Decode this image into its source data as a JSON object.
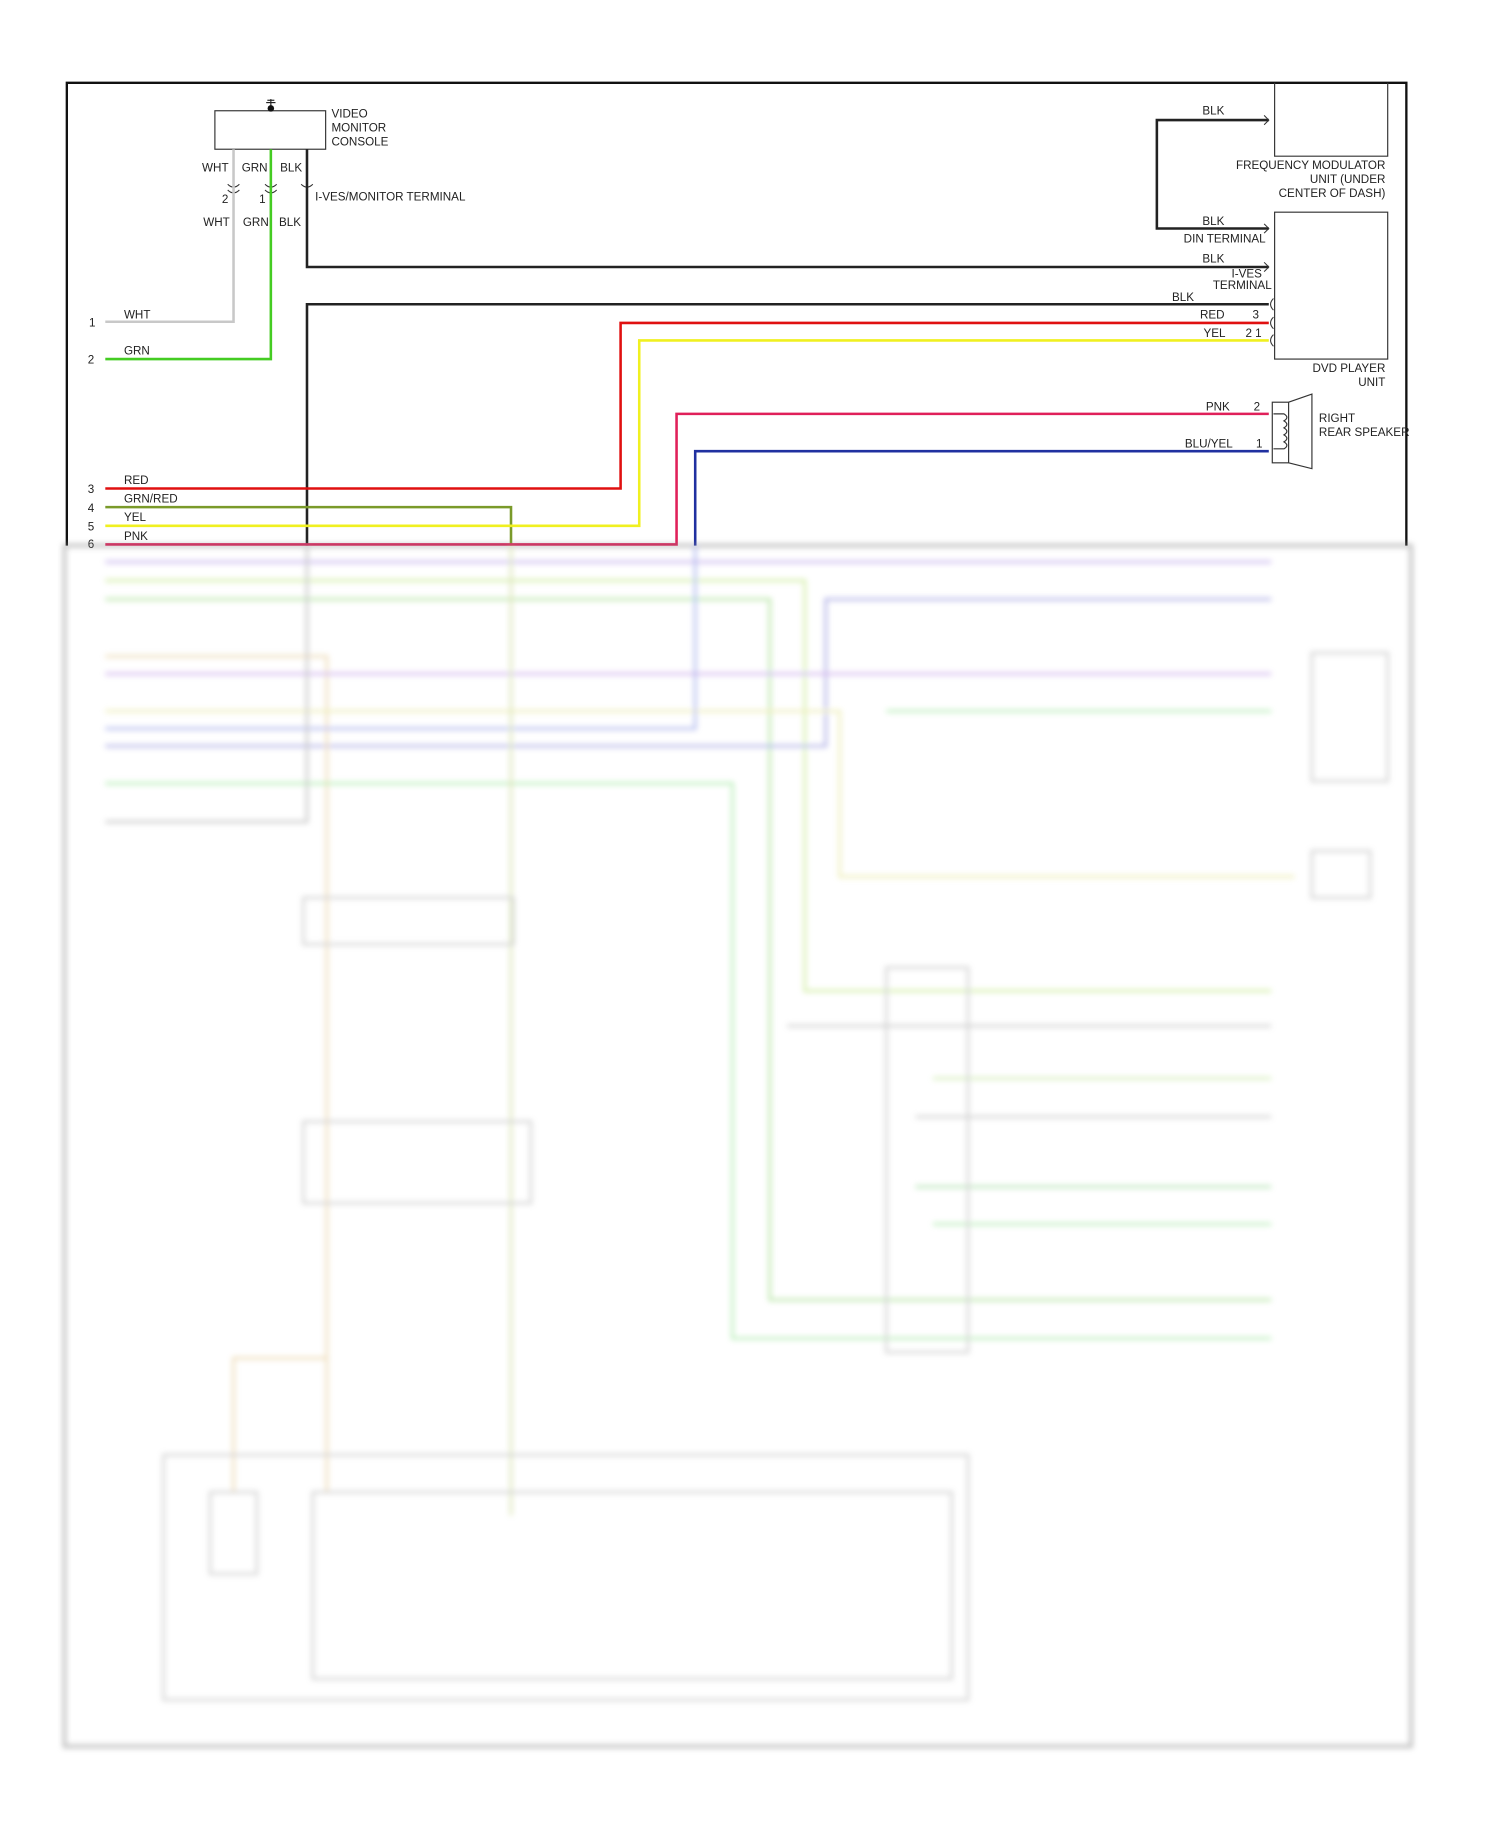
{
  "colors": {
    "blk": "#222222",
    "wht": "#c8c8c8",
    "grn": "#44cc22",
    "red": "#e01010",
    "yel": "#f0f020",
    "grn_red": "#7a9a2a",
    "pnk": "#e0205a",
    "blu_yel": "#2030a0",
    "frame": "#111111"
  },
  "components": {
    "video_monitor_console": [
      "VIDEO",
      "MONITOR",
      "CONSOLE"
    ],
    "frequency_modulator": [
      "FREQUENCY MODULATOR",
      "UNIT (UNDER",
      "CENTER OF DASH)"
    ],
    "dvd_player": [
      "DVD PLAYER",
      "UNIT"
    ],
    "right_rear_speaker": [
      "RIGHT",
      "REAR SPEAKER"
    ]
  },
  "console_connector": {
    "top_labels": [
      "WHT",
      "GRN",
      "BLK"
    ],
    "bottom_labels": [
      "WHT",
      "GRN",
      "BLK"
    ],
    "pins": [
      "2",
      "1"
    ],
    "terminal_label": "I-VES/MONITOR TERMINAL"
  },
  "left_pins": [
    {
      "pin": "1",
      "wire": "WHT"
    },
    {
      "pin": "2",
      "wire": "GRN"
    },
    {
      "pin": "3",
      "wire": "RED"
    },
    {
      "pin": "4",
      "wire": "GRN/RED"
    },
    {
      "pin": "5",
      "wire": "YEL"
    },
    {
      "pin": "6",
      "wire": "PNK"
    }
  ],
  "right_wires": {
    "fm_blk": "BLK",
    "din_blk": "BLK",
    "din_terminal": "DIN TERMINAL",
    "ives_blk": "BLK",
    "ives_label": "I-VES",
    "terminal_label": "TERMINAL",
    "blk_overlap": "BLK",
    "red": "RED",
    "red_pin": "3",
    "yel": "YEL",
    "yel_pin": "2 1",
    "pnk": "PNK",
    "pnk_pin": "2",
    "blu_yel": "BLU/YEL",
    "blu_yel_pin": "1"
  }
}
